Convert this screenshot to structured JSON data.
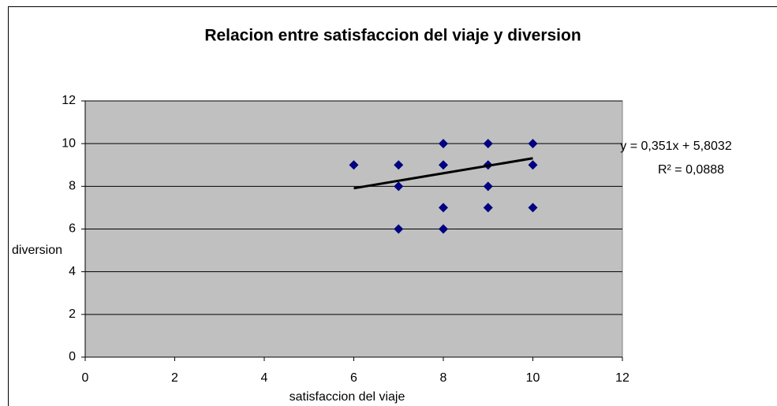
{
  "chart_data": {
    "type": "scatter",
    "title": "Relacion entre satisfaccion del viaje y diversion",
    "x_label": "satisfaccion del viaje",
    "y_label": "diversion",
    "series": [
      {
        "name": null,
        "color": "#000080",
        "x": [
          6,
          7,
          7,
          7,
          8,
          8,
          8,
          8,
          9,
          9,
          9,
          9,
          10,
          10,
          10
        ],
        "values": [
          9,
          9,
          8,
          6,
          10,
          9,
          7,
          6,
          10,
          9,
          8,
          7,
          10,
          9,
          7
        ]
      }
    ],
    "trendline": {
      "color": "#000000",
      "x": [
        6,
        10
      ],
      "y": [
        7.9092,
        9.3132
      ]
    },
    "annotations": [
      "y = 0,351x + 5,8032",
      "R² = 0,0888"
    ],
    "xlim": [
      0,
      12
    ],
    "xticks": [
      0,
      2,
      4,
      6,
      8,
      10,
      12
    ],
    "ylim": [
      0,
      12
    ],
    "yticks": [
      0,
      2,
      4,
      6,
      8,
      10,
      12
    ],
    "grid": true,
    "plot_background": "#c0c0c0"
  }
}
